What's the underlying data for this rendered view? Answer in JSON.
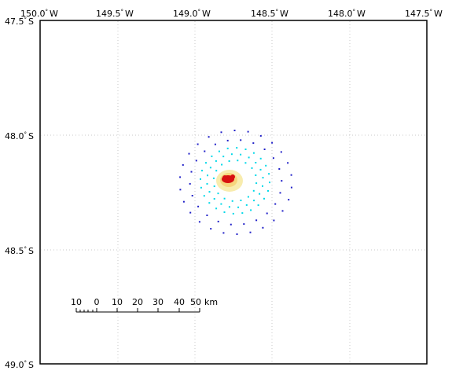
{
  "map": {
    "lon_labels": [
      {
        "deg": "150.0",
        "hemi": "W"
      },
      {
        "deg": "149.5",
        "hemi": "W"
      },
      {
        "deg": "149.0",
        "hemi": "W"
      },
      {
        "deg": "148.5",
        "hemi": "W"
      },
      {
        "deg": "148.0",
        "hemi": "W"
      },
      {
        "deg": "147.5",
        "hemi": "W"
      }
    ],
    "lat_labels": [
      {
        "deg": "47.5",
        "hemi": "S"
      },
      {
        "deg": "48.0",
        "hemi": "S"
      },
      {
        "deg": "48.5",
        "hemi": "S"
      },
      {
        "deg": "49.0",
        "hemi": "S"
      }
    ],
    "degree_symbol": "°",
    "scale_bar": {
      "labels": [
        "10",
        "0",
        "10",
        "20",
        "30",
        "40",
        "50"
      ],
      "unit": "km"
    },
    "colors": {
      "outer_ring": "#2020c8",
      "inner_ring": "#00d8e8",
      "halo": "#f7e9a0",
      "core": "#d81010",
      "grid": "#c8c8c8",
      "frame": "#000000"
    }
  }
}
